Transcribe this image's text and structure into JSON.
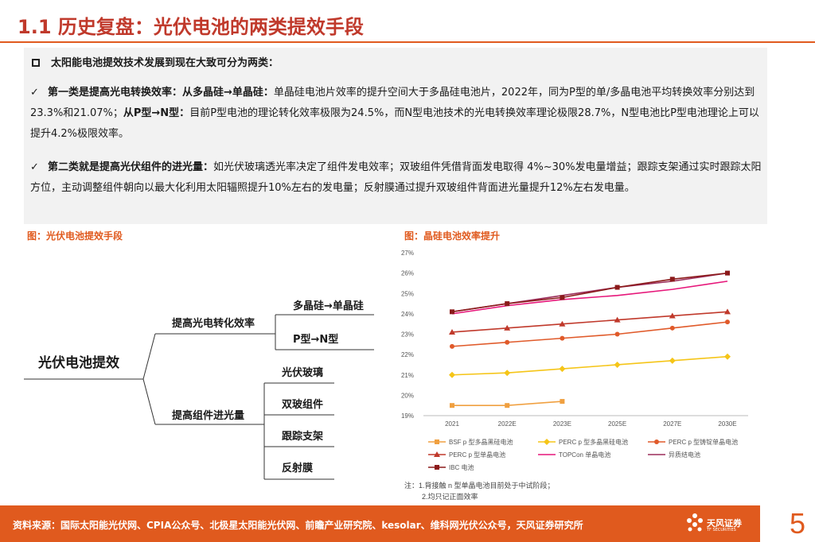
{
  "header": {
    "title": "1.1 历史复盘：光伏电池的两类提效手段"
  },
  "summary": {
    "intro": "太阳能电池提效技术发展到现在大致可分为两类：",
    "point1": {
      "check": "✓",
      "bold_a": "第一类是提高光电转换效率：从多晶硅→单晶硅：",
      "text_a": "单晶硅电池片效率的提升空间大于多晶硅电池片，2022年，同为P型的单/多晶电池平均转换效率分别达到23.3%和21.07%；",
      "bold_b": "从P型→N型：",
      "text_b": "目前P型电池的理论转化效率极限为24.5%，而N型电池技术的光电转换效率理论极限28.7%，N型电池比P型电池理论上可以提升4.2%极限效率。"
    },
    "point2": {
      "check": "✓",
      "bold": "第二类就是提高光伏组件的进光量：",
      "text": "如光伏玻璃透光率决定了组件发电效率；双玻组件凭借背面发电取得 4%~30%发电量增益；跟踪支架通过实时跟踪太阳方位，主动调整组件朝向以最大化利用太阳辐照提升10%左右的发电量；反射膜通过提升双玻组件背面进光量提升12%左右发电量。"
    }
  },
  "figures": {
    "left_title": "图：光伏电池提效手段",
    "right_title": "图：晶硅电池效率提升"
  },
  "tree": {
    "root": "光伏电池提效",
    "branch1": "提高光电转化效率",
    "branch1_items": [
      "多晶硅→单晶硅",
      "P型→N型"
    ],
    "branch2": "提高组件进光量",
    "branch2_items": [
      "光伏玻璃",
      "双玻组件",
      "跟踪支架",
      "反射膜"
    ]
  },
  "chart_data": {
    "type": "line",
    "categories": [
      "2021",
      "2022E",
      "2023E",
      "2025E",
      "2027E",
      "2030E"
    ],
    "y_ticks": [
      "19%",
      "20%",
      "21%",
      "22%",
      "23%",
      "24%",
      "25%",
      "26%",
      "27%"
    ],
    "ylim": [
      19,
      27
    ],
    "grid": false,
    "legend_position": "bottom",
    "series": [
      {
        "name": "BSF p 型多晶黑硅电池",
        "color": "#f0a040",
        "marker": "square",
        "values": [
          19.5,
          19.5,
          19.7,
          null,
          null,
          null
        ]
      },
      {
        "name": "PERC p 型多晶黑硅电池",
        "color": "#f5c518",
        "marker": "diamond",
        "values": [
          21.0,
          21.1,
          21.3,
          21.5,
          21.7,
          21.9
        ]
      },
      {
        "name": "PERC p 型铸锭单晶电池",
        "color": "#e05a2a",
        "marker": "circle",
        "values": [
          22.4,
          22.6,
          22.8,
          23.0,
          23.3,
          23.6
        ]
      },
      {
        "name": "PERC p 型单晶电池",
        "color": "#c0392b",
        "marker": "triangle",
        "values": [
          23.1,
          23.3,
          23.5,
          23.7,
          23.9,
          24.1
        ]
      },
      {
        "name": "TOPCon 单晶电池",
        "color": "#e6177a",
        "marker": "none",
        "values": [
          24.0,
          24.4,
          24.7,
          24.9,
          25.2,
          25.6
        ]
      },
      {
        "name": "异质结电池",
        "color": "#9b2d5a",
        "marker": "none",
        "values": [
          24.1,
          24.5,
          24.9,
          25.3,
          25.6,
          26.0
        ]
      },
      {
        "name": "IBC 电池",
        "color": "#8b1a1a",
        "marker": "square",
        "values": [
          24.1,
          24.5,
          24.8,
          25.3,
          25.7,
          26.0
        ]
      }
    ],
    "notes": [
      "注：1.背接触 n 型单晶电池目前处于中试阶段；",
      "2.均只记正面效率"
    ]
  },
  "footer": {
    "source": "资料来源：国际太阳能光伏网、CPIA公众号、北极星太阳能光伏网、前瞻产业研究院、kesolar、维科网光伏公众号，天风证券研究所",
    "brand": "天风证券",
    "brand_sub": "TF SECURITIES",
    "page": "5"
  },
  "colors": {
    "accent": "#e05a1e",
    "title": "#c0392b"
  }
}
